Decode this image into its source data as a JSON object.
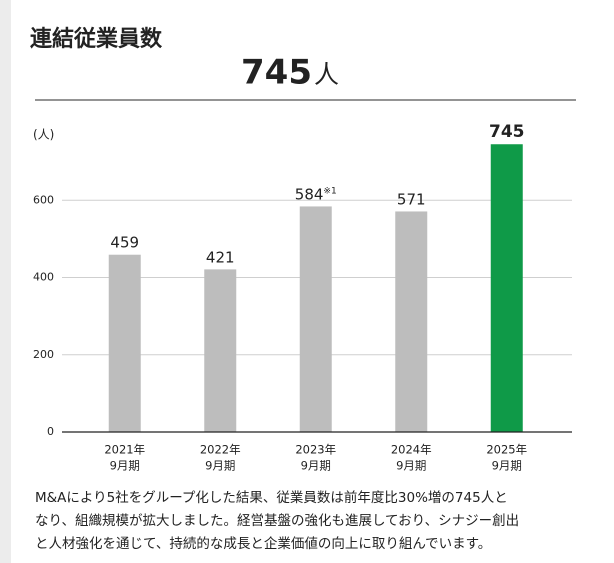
{
  "header": {
    "title": "連結従業員数",
    "headline_value": "745",
    "headline_unit": "人"
  },
  "chart_data": {
    "type": "bar",
    "y_label": "(人)",
    "categories": [
      [
        "2021年",
        "9月期"
      ],
      [
        "2022年",
        "9月期"
      ],
      [
        "2023年",
        "9月期"
      ],
      [
        "2024年",
        "9月期"
      ],
      [
        "2025年",
        "9月期"
      ]
    ],
    "values": [
      459,
      421,
      584,
      571,
      745
    ],
    "value_notes": [
      null,
      null,
      "※1",
      null,
      null
    ],
    "colors": [
      "#bdbdbd",
      "#bdbdbd",
      "#bdbdbd",
      "#bdbdbd",
      "#0f9a48"
    ],
    "ylim": [
      0,
      800
    ],
    "yticks": [
      0,
      200,
      400,
      600
    ],
    "grid": true
  },
  "description": [
    "M&Aにより5社をグループ化した結果、従業員数は前年度比30%増の745人と",
    "なり、組織規模が拡大しました。経営基盤の強化も進展しており、シナジー創出",
    "と人材強化を通じて、持続的な成長と企業価値の向上に取り組んでいます。"
  ]
}
